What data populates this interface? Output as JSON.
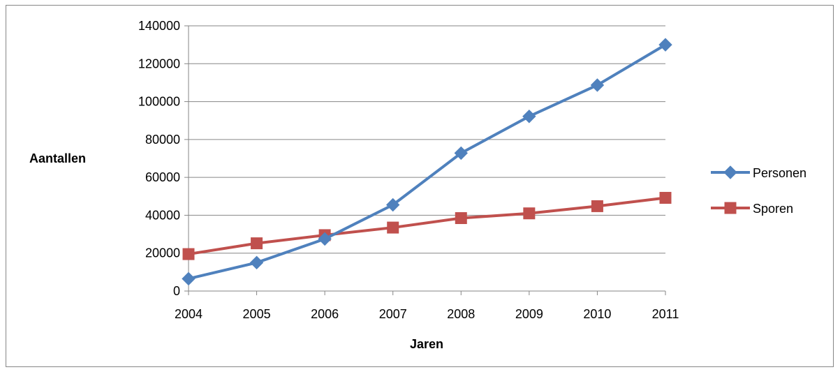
{
  "chart_data": {
    "type": "line",
    "title": "",
    "xlabel": "Jaren",
    "ylabel": "Aantallen",
    "categories": [
      "2004",
      "2005",
      "2006",
      "2007",
      "2008",
      "2009",
      "2010",
      "2011"
    ],
    "ylim": [
      0,
      140000
    ],
    "yticks": [
      0,
      20000,
      40000,
      60000,
      80000,
      100000,
      120000,
      140000
    ],
    "grid": true,
    "legend_position": "right",
    "series": [
      {
        "name": "Personen",
        "color": "#4f81bd",
        "marker": "diamond",
        "values": [
          6500,
          15000,
          27500,
          45500,
          72800,
          92200,
          108700,
          130000
        ]
      },
      {
        "name": "Sporen",
        "color": "#c0504d",
        "marker": "square",
        "values": [
          19500,
          25200,
          29500,
          33500,
          38500,
          41000,
          44800,
          49200
        ]
      }
    ]
  }
}
